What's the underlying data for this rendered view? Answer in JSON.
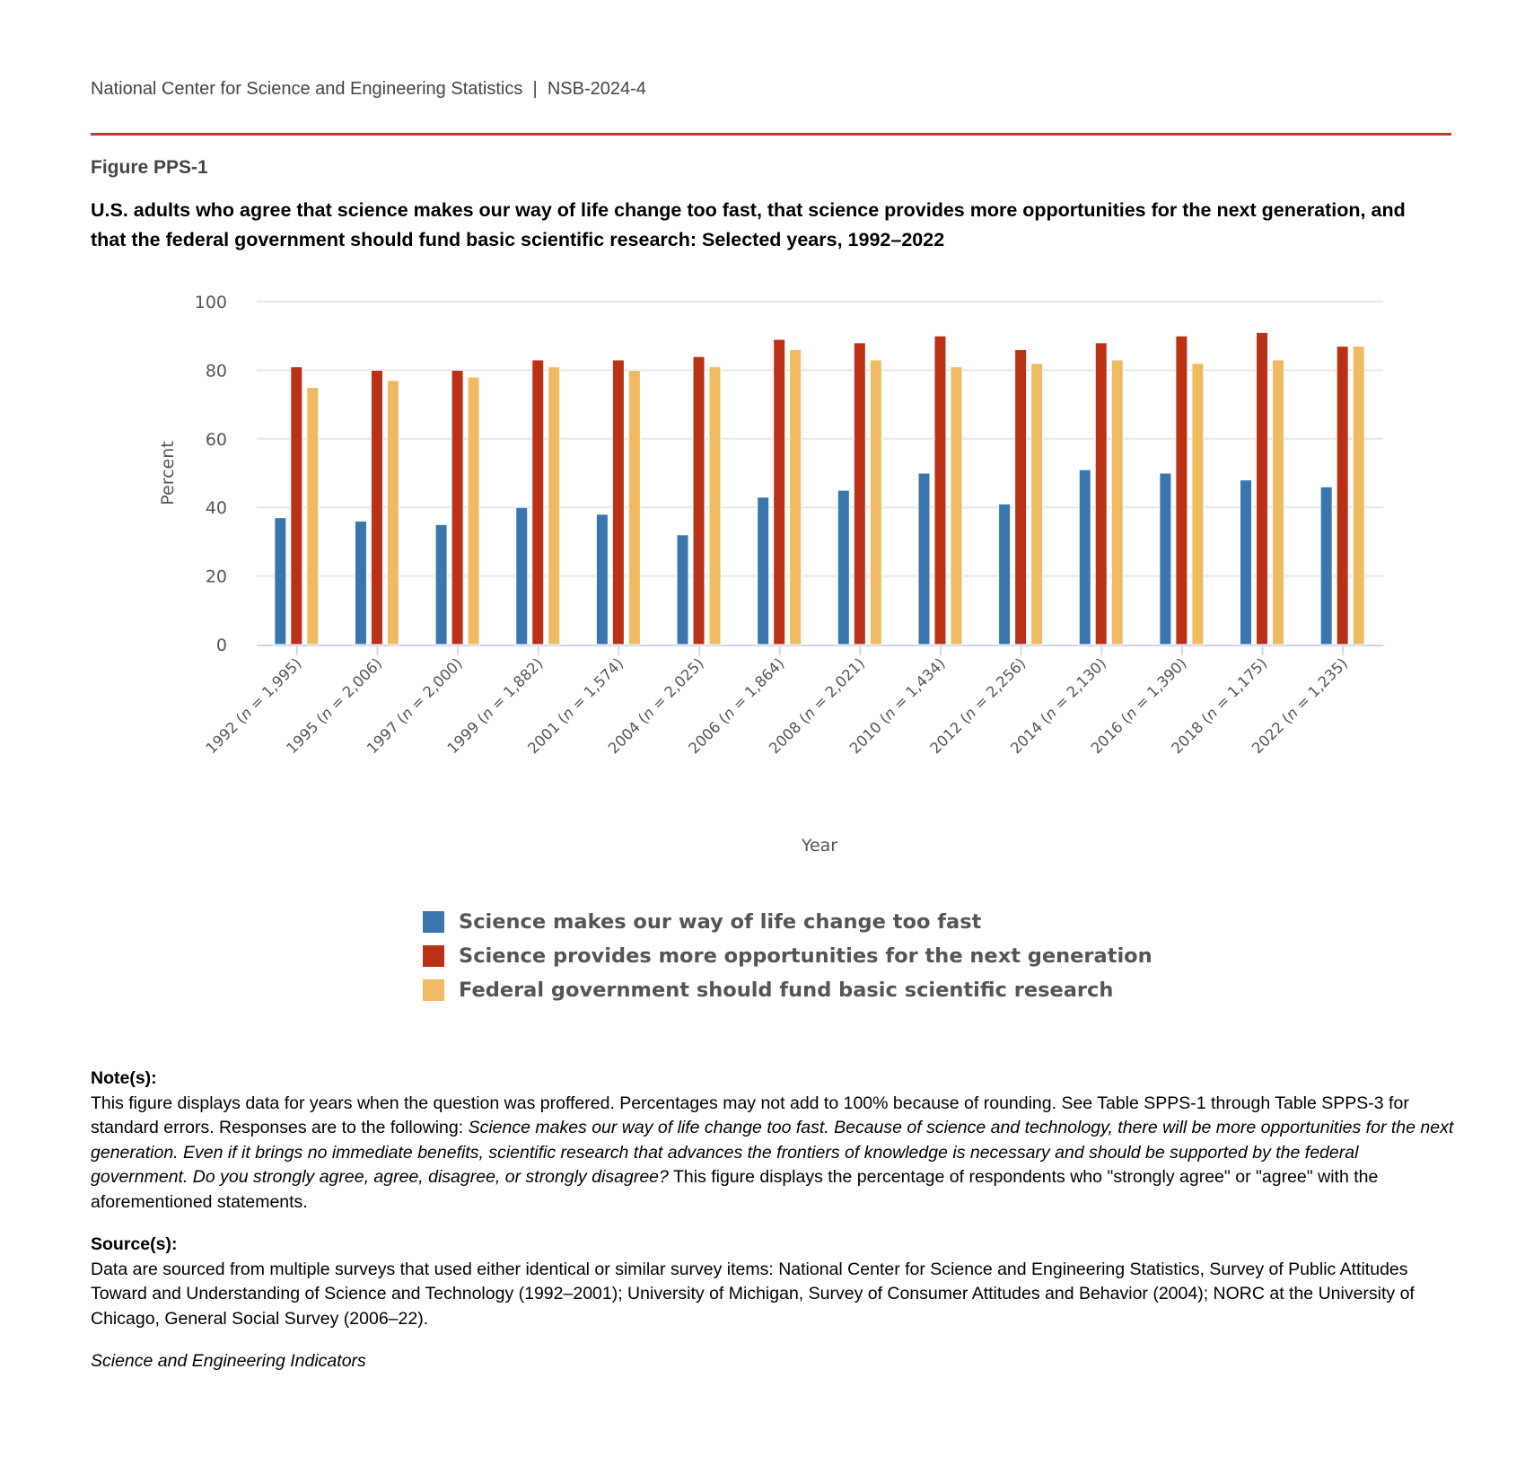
{
  "header": {
    "org": "National Center for Science and Engineering Statistics",
    "separator": "|",
    "report": "NSB-2024-4"
  },
  "figure_label": "Figure PPS-1",
  "title": "U.S. adults who agree that science makes our way of life change too fast, that science provides more opportunities for the next generation, and that the federal government should fund basic scientific research: Selected years, 1992–2022",
  "chart_data": {
    "type": "bar",
    "title": "U.S. adults who agree that science makes our way of life change too fast, that science provides more opportunities for the next generation, and that the federal government should fund basic scientific research: Selected years, 1992–2022",
    "xlabel": "Year",
    "ylabel": "Percent",
    "ylim": [
      0,
      100
    ],
    "yticks": [
      0,
      20,
      40,
      60,
      80,
      100
    ],
    "grid": true,
    "legend_position": "bottom",
    "categories": [
      {
        "year": "1992",
        "n": "1,995"
      },
      {
        "year": "1995",
        "n": "2,006"
      },
      {
        "year": "1997",
        "n": "2,000"
      },
      {
        "year": "1999",
        "n": "1,882"
      },
      {
        "year": "2001",
        "n": "1,574"
      },
      {
        "year": "2004",
        "n": "2,025"
      },
      {
        "year": "2006",
        "n": "1,864"
      },
      {
        "year": "2008",
        "n": "2,021"
      },
      {
        "year": "2010",
        "n": "1,434"
      },
      {
        "year": "2012",
        "n": "2,256"
      },
      {
        "year": "2014",
        "n": "2,130"
      },
      {
        "year": "2016",
        "n": "1,390"
      },
      {
        "year": "2018",
        "n": "1,175"
      },
      {
        "year": "2022",
        "n": "1,235"
      }
    ],
    "series": [
      {
        "name": "Science makes our way of life change too fast",
        "color": "#3a76ae",
        "values": [
          37,
          36,
          35,
          40,
          38,
          32,
          43,
          45,
          50,
          41,
          51,
          50,
          48,
          46
        ]
      },
      {
        "name": "Science provides more opportunities for the next generation",
        "color": "#bb3115",
        "values": [
          81,
          80,
          80,
          83,
          83,
          84,
          89,
          88,
          90,
          86,
          88,
          90,
          91,
          87
        ]
      },
      {
        "name": "Federal government should fund basic scientific research",
        "color": "#f0ba60",
        "values": [
          75,
          77,
          78,
          81,
          80,
          81,
          86,
          83,
          81,
          82,
          83,
          82,
          83,
          87
        ]
      }
    ]
  },
  "notes": {
    "heading": "Note(s):",
    "text1": "This figure displays data for years when the question was proffered. Percentages may not add to 100% because of rounding. See Table SPPS-1 through Table SPPS-3 for standard errors. Responses are to the following: ",
    "italic": "Science makes our way of life change too fast. Because of science and technology, there will be more opportunities for the next generation. Even if it brings no immediate benefits, scientific research that advances the frontiers of knowledge is necessary and should be supported by the federal government. Do you strongly agree, agree, disagree, or strongly disagree?",
    "text2": " This figure displays the percentage of respondents who \"strongly agree\" or \"agree\" with the aforementioned statements."
  },
  "sources": {
    "heading": "Source(s):",
    "text": "Data are sourced from multiple surveys that used either identical or similar survey items: National Center for Science and Engineering Statistics, Survey of Public Attitudes Toward and Understanding of Science and Technology (1992–2001); University of Michigan, Survey of Consumer Attitudes and Behavior (2004); NORC at the University of Chicago, General Social Survey (2006–22)."
  },
  "footer": "Science and Engineering Indicators"
}
